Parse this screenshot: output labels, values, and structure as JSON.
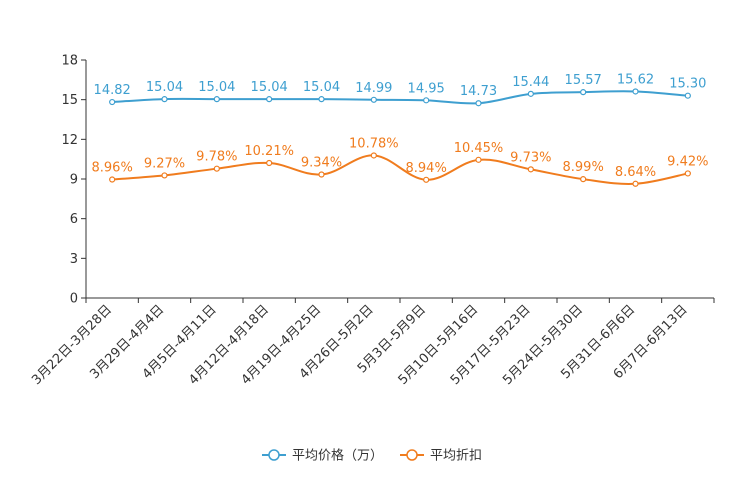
{
  "chart_data": {
    "type": "line",
    "title": "",
    "xlabel": "",
    "ylabel": "",
    "ylim": [
      0,
      18
    ],
    "yticks": [
      0,
      3,
      6,
      9,
      12,
      15,
      18
    ],
    "grid": false,
    "legend_position": "bottom-center",
    "categories": [
      "3月22日-3月28日",
      "3月29日-4月4日",
      "4月5日-4月11日",
      "4月12日-4月18日",
      "4月19日-4月25日",
      "4月26日-5月2日",
      "5月3日-5月9日",
      "5月10日-5月16日",
      "5月17日-5月23日",
      "5月24日-5月30日",
      "5月31日-6月6日",
      "6月7日-6月13日"
    ],
    "series": [
      {
        "name": "平均价格（万）",
        "color": "#3e9fd0",
        "values": [
          14.82,
          15.04,
          15.04,
          15.04,
          15.04,
          14.99,
          14.95,
          14.73,
          15.44,
          15.57,
          15.62,
          15.3
        ],
        "labels": [
          "14.82",
          "15.04",
          "15.04",
          "15.04",
          "15.04",
          "14.99",
          "14.95",
          "14.73",
          "15.44",
          "15.57",
          "15.62",
          "15.30"
        ]
      },
      {
        "name": "平均折扣",
        "color": "#f07c1e",
        "values": [
          8.96,
          9.27,
          9.78,
          10.21,
          9.34,
          10.78,
          8.94,
          10.45,
          9.73,
          8.99,
          8.64,
          9.42
        ],
        "labels": [
          "8.96%",
          "9.27%",
          "9.78%",
          "10.21%",
          "9.34%",
          "10.78%",
          "8.94%",
          "10.45%",
          "9.73%",
          "8.99%",
          "8.64%",
          "9.42%"
        ]
      }
    ]
  }
}
